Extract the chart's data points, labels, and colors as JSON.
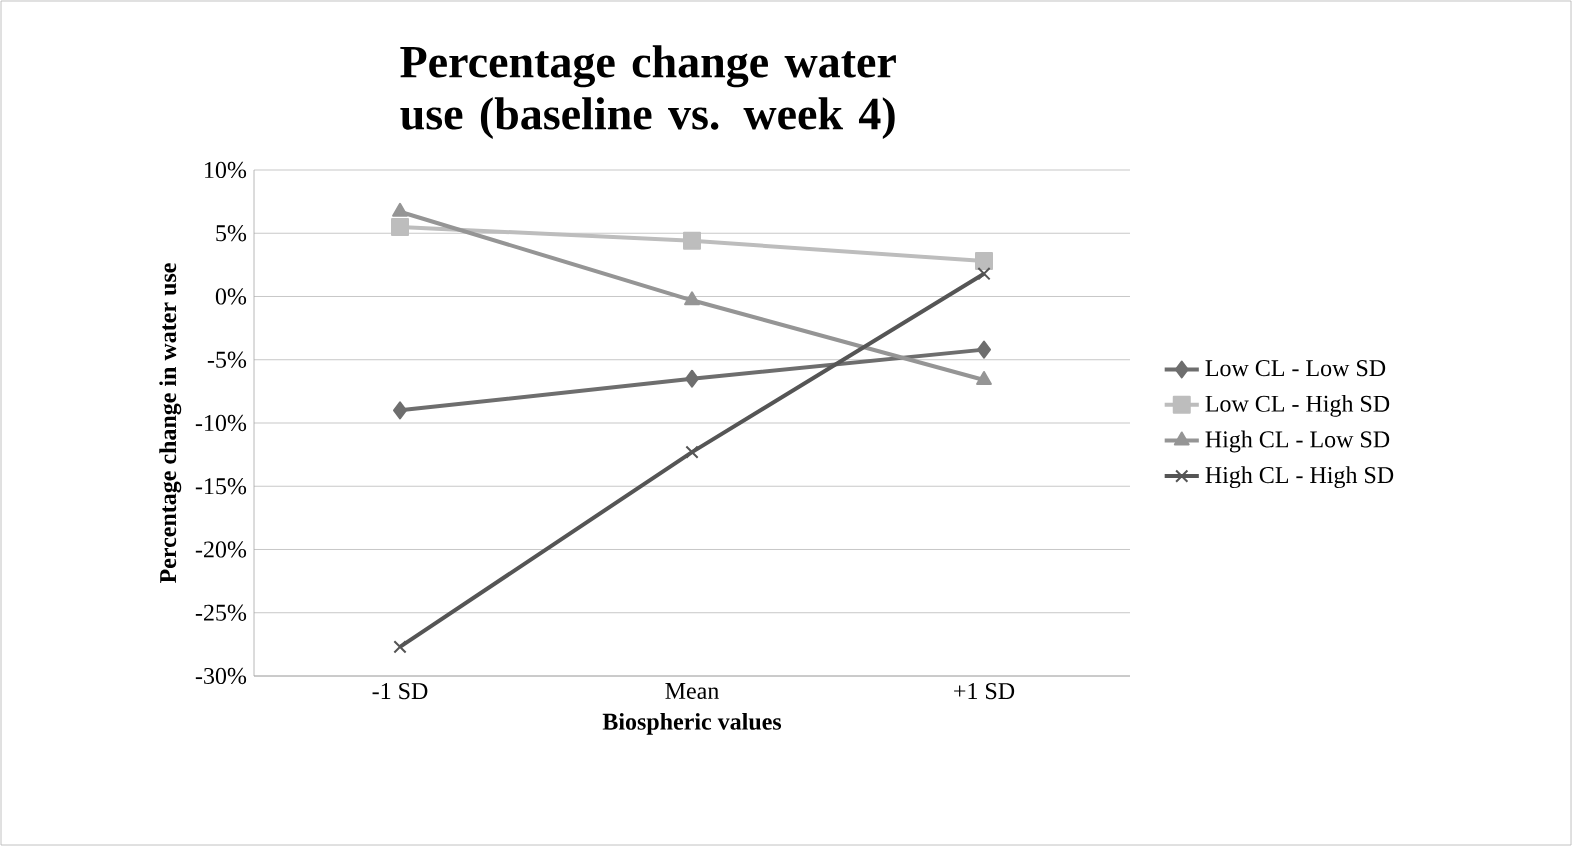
{
  "chart_data": {
    "type": "line",
    "title": "Percentage change water use (baseline vs. week 4)",
    "xlabel": "Biospheric values",
    "ylabel": "Percentage change in water use",
    "categories": [
      "-1 SD",
      "Mean",
      "+1 SD"
    ],
    "series": [
      {
        "name": "Low CL - Low SD",
        "color": "#6e6e6e",
        "marker": "diamond",
        "values": [
          -9,
          -6.5,
          -4.2
        ]
      },
      {
        "name": "Low CL - High SD",
        "color": "#bdbdbd",
        "marker": "square",
        "values": [
          5.5,
          4.4,
          2.8
        ]
      },
      {
        "name": "High CL - Low SD",
        "color": "#959595",
        "marker": "triangle",
        "values": [
          6.7,
          -0.3,
          -6.6
        ]
      },
      {
        "name": "High CL - High SD",
        "color": "#555555",
        "marker": "cross",
        "values": [
          -27.7,
          -12.3,
          1.8
        ]
      }
    ],
    "ylim": [
      -30,
      10
    ],
    "yticks": [
      {
        "value": -30,
        "label": "-30%"
      },
      {
        "value": -25,
        "label": "-25%"
      },
      {
        "value": -20,
        "label": "-20%"
      },
      {
        "value": -15,
        "label": "-15%"
      },
      {
        "value": -10,
        "label": "-10%"
      },
      {
        "value": -5,
        "label": "-5%"
      },
      {
        "value": 0,
        "label": "0%"
      },
      {
        "value": 5,
        "label": "5%"
      },
      {
        "value": 10,
        "label": "10%"
      }
    ],
    "grid": "y",
    "legend": "right",
    "line_style": "solid"
  }
}
